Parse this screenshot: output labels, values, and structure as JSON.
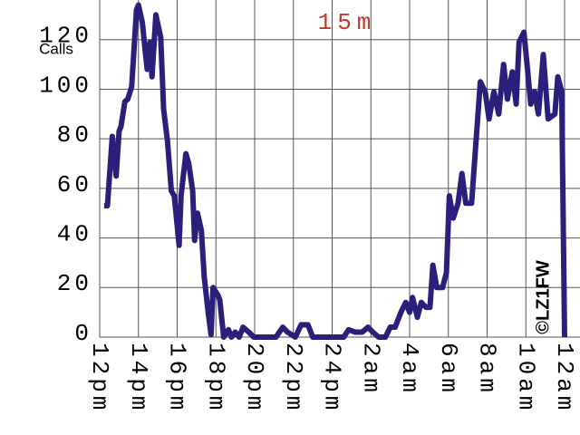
{
  "chart_data": {
    "type": "line",
    "title": "15m",
    "y_label": "Calls",
    "annotation": "©LZ1FW",
    "xlim": [
      12,
      36
    ],
    "ylim": [
      0,
      136
    ],
    "xticks": [
      {
        "value": 12,
        "label": "12pm"
      },
      {
        "value": 14,
        "label": "14pm"
      },
      {
        "value": 16,
        "label": "16pm"
      },
      {
        "value": 18,
        "label": "18pm"
      },
      {
        "value": 20,
        "label": "20pm"
      },
      {
        "value": 22,
        "label": "22pm"
      },
      {
        "value": 24,
        "label": "24pm"
      },
      {
        "value": 26,
        "label": "2am"
      },
      {
        "value": 28,
        "label": "4am"
      },
      {
        "value": 30,
        "label": "6am"
      },
      {
        "value": 32,
        "label": "8am"
      },
      {
        "value": 34,
        "label": "10am"
      },
      {
        "value": 36,
        "label": "12am"
      }
    ],
    "yticks": [
      0,
      20,
      40,
      60,
      80,
      100,
      120
    ],
    "grid": true,
    "x": [
      12.23,
      12.4,
      12.65,
      12.85,
      13,
      13.1,
      13.3,
      13.45,
      13.65,
      13.9,
      14.0,
      14.2,
      14.45,
      14.6,
      14.7,
      14.9,
      15.15,
      15.3,
      15.5,
      15.7,
      15.85,
      16.1,
      16.2,
      16.45,
      16.6,
      16.8,
      16.9,
      17.05,
      17.25,
      17.4,
      17.6,
      17.75,
      17.85,
      18.1,
      18.2,
      18.4,
      18.65,
      18.8,
      19.0,
      19.2,
      19.4,
      19.7,
      19.95,
      21.1,
      21.45,
      21.7,
      22.1,
      22.4,
      22.75,
      23,
      24.6,
      24.85,
      25.2,
      25.55,
      25.85,
      26.1,
      26.4,
      26.75,
      27,
      27.25,
      27.55,
      27.8,
      28.0,
      28.15,
      28.4,
      28.6,
      28.85,
      29.05,
      29.2,
      29.4,
      29.7,
      29.9,
      30.05,
      30.25,
      30.5,
      30.7,
      30.9,
      31.2,
      31.4,
      31.65,
      31.9,
      32.1,
      32.35,
      32.6,
      32.85,
      33.05,
      33.3,
      33.5,
      33.65,
      33.9,
      34.1,
      34.25,
      34.45,
      34.65,
      34.9,
      35.15,
      35.5,
      35.65,
      35.85,
      36
    ],
    "series": [
      {
        "color": "#2a1f7a",
        "values": [
          53,
          53,
          81,
          65,
          83,
          85,
          95,
          96,
          101,
          132,
          134,
          127,
          108,
          119,
          105,
          130,
          121,
          92,
          79,
          59,
          57,
          37,
          57,
          74,
          70,
          59,
          39,
          50,
          43,
          24,
          10,
          1,
          20,
          17,
          15,
          0,
          3,
          0,
          2,
          0,
          4,
          2,
          0,
          0,
          4,
          2,
          0,
          5,
          5,
          0,
          0,
          3,
          2,
          2,
          4,
          2,
          0,
          0,
          4,
          4,
          10,
          14,
          10,
          16,
          8,
          14,
          12,
          12,
          29,
          20,
          20,
          26,
          57,
          48,
          54,
          66,
          54,
          54,
          76,
          103,
          99,
          88,
          99,
          90,
          110,
          96,
          107,
          94,
          119,
          123,
          107,
          94,
          99,
          90,
          114,
          88,
          90,
          105,
          99,
          0
        ]
      }
    ]
  }
}
